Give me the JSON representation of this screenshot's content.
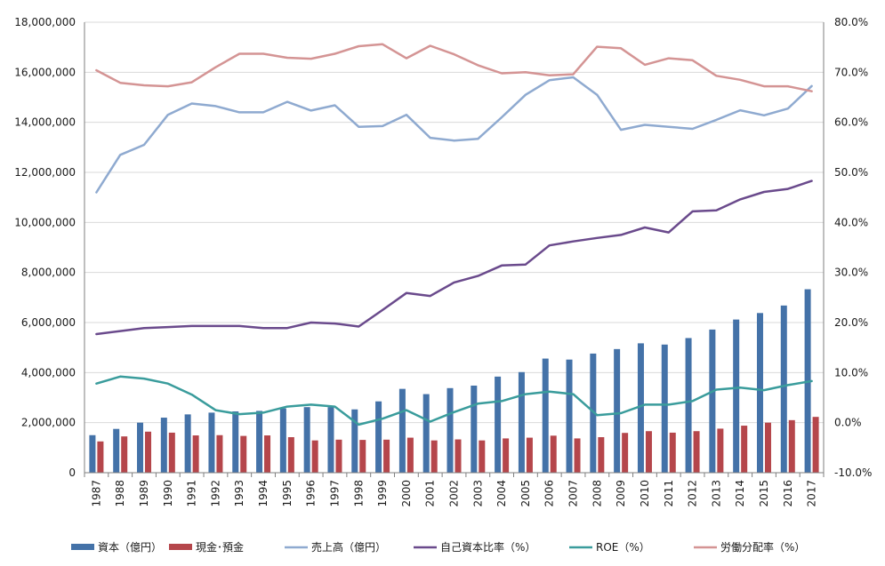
{
  "chart_data": {
    "type": "bar",
    "categories": [
      "1987",
      "1988",
      "1989",
      "1990",
      "1991",
      "1992",
      "1993",
      "1994",
      "1995",
      "1996",
      "1997",
      "1998",
      "1999",
      "2000",
      "2001",
      "2002",
      "2003",
      "2004",
      "2005",
      "2006",
      "2007",
      "2008",
      "2009",
      "2010",
      "2011",
      "2012",
      "2013",
      "2014",
      "2015",
      "2016",
      "2017"
    ],
    "y_left": {
      "ylim": [
        0,
        18000000
      ],
      "ticks": [
        0,
        2000000,
        4000000,
        6000000,
        8000000,
        10000000,
        12000000,
        14000000,
        16000000,
        18000000
      ],
      "tick_labels": [
        "0",
        "2,000,000",
        "4,000,000",
        "6,000,000",
        "8,000,000",
        "10,000,000",
        "12,000,000",
        "14,000,000",
        "16,000,000",
        "18,000,000"
      ]
    },
    "y_right": {
      "ylim": [
        -10,
        80
      ],
      "ticks": [
        -10,
        0,
        10,
        20,
        30,
        40,
        50,
        60,
        70,
        80
      ],
      "tick_labels": [
        "-10.0%",
        "0.0%",
        "10.0%",
        "20.0%",
        "30.0%",
        "40.0%",
        "50.0%",
        "60.0%",
        "70.0%",
        "80.0%"
      ]
    },
    "grid": "horizontal",
    "legend_position": "bottom",
    "series": [
      {
        "name": "資本（億円）",
        "type": "bar",
        "axis": "left",
        "color": "#4472A8",
        "values": [
          1500000,
          1750000,
          2000000,
          2200000,
          2330000,
          2400000,
          2450000,
          2470000,
          2570000,
          2620000,
          2620000,
          2530000,
          2850000,
          3350000,
          3140000,
          3380000,
          3480000,
          3840000,
          4020000,
          4560000,
          4520000,
          4760000,
          4940000,
          5170000,
          5120000,
          5380000,
          5720000,
          6120000,
          6380000,
          6680000,
          7330000
        ]
      },
      {
        "name": "現金･預金",
        "type": "bar",
        "axis": "left",
        "color": "#B5464B",
        "values": [
          1250000,
          1450000,
          1640000,
          1600000,
          1490000,
          1500000,
          1470000,
          1490000,
          1420000,
          1290000,
          1320000,
          1310000,
          1320000,
          1400000,
          1290000,
          1330000,
          1290000,
          1370000,
          1400000,
          1480000,
          1370000,
          1420000,
          1590000,
          1660000,
          1600000,
          1660000,
          1760000,
          1880000,
          2000000,
          2100000,
          2230000
        ]
      },
      {
        "name": "売上高（億円）",
        "type": "line",
        "axis": "left",
        "color": "#8FAAD0",
        "values": [
          11200000,
          12700000,
          13100000,
          14300000,
          14750000,
          14650000,
          14400000,
          14400000,
          14820000,
          14470000,
          14680000,
          13820000,
          13850000,
          14300000,
          13380000,
          13270000,
          13340000,
          14200000,
          15100000,
          15680000,
          15800000,
          15100000,
          13700000,
          13900000,
          13820000,
          13740000,
          14100000,
          14480000,
          14280000,
          14550000,
          15450000
        ]
      },
      {
        "name": "自己資本比率（%）",
        "type": "line",
        "axis": "right",
        "color": "#6A4A8C",
        "values": [
          17.7,
          18.3,
          18.9,
          19.1,
          19.3,
          19.3,
          19.3,
          18.9,
          18.9,
          20.0,
          19.8,
          19.2,
          22.5,
          25.9,
          25.3,
          28.0,
          29.3,
          31.4,
          31.6,
          35.4,
          36.2,
          36.9,
          37.5,
          39.0,
          38.0,
          42.2,
          42.4,
          44.6,
          46.1,
          46.7,
          48.3
        ]
      },
      {
        "name": "ROE（%）",
        "type": "line",
        "axis": "right",
        "color": "#3A9C9C",
        "values": [
          7.8,
          9.2,
          8.8,
          7.8,
          5.6,
          2.5,
          1.7,
          2.0,
          3.2,
          3.6,
          3.2,
          -0.4,
          0.8,
          2.5,
          0.2,
          2.1,
          3.8,
          4.3,
          5.7,
          6.2,
          5.7,
          1.5,
          1.9,
          3.6,
          3.6,
          4.3,
          6.6,
          7.0,
          6.5,
          7.5,
          8.3
        ]
      },
      {
        "name": "労働分配率（%）",
        "type": "line",
        "axis": "right",
        "color": "#D49494",
        "values": [
          70.4,
          67.9,
          67.4,
          67.2,
          68.0,
          71.0,
          73.7,
          73.7,
          72.9,
          72.7,
          73.7,
          75.2,
          75.6,
          72.8,
          75.3,
          73.6,
          71.4,
          69.8,
          70.0,
          69.4,
          69.6,
          75.1,
          74.8,
          71.5,
          72.8,
          72.4,
          69.3,
          68.5,
          67.2,
          67.2,
          66.2
        ]
      }
    ]
  }
}
